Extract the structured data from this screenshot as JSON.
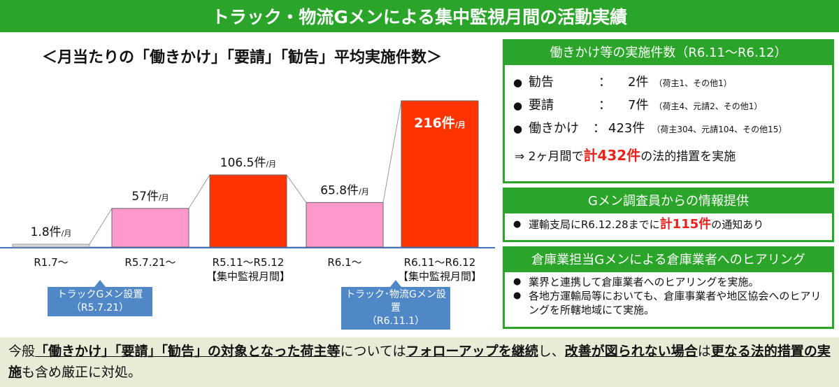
{
  "header": {
    "title": "トラック・物流Gメンによる集中監視月間の活動実績"
  },
  "chart_title": "＜月当たりの「働きかけ」「要請」「勧告」平均実施件数＞",
  "chart_data": {
    "type": "bar",
    "categories": [
      "R1.7～",
      "R5.7.21～",
      "R5.11～R5.12\n【集中監視月間】",
      "R6.1～",
      "R6.11～R6.12\n【集中監視月間】"
    ],
    "values": [
      1.8,
      57,
      106.5,
      65.8,
      216
    ],
    "value_labels": [
      "1.8件",
      "57件",
      "106.5件",
      "65.8件",
      "216件"
    ],
    "unit_suffix": "/月",
    "bar_colors": [
      "#d9d9d9",
      "#ff99cc",
      "#ff3300",
      "#ff99cc",
      "#ff3300"
    ],
    "ylim": [
      0,
      216
    ],
    "title": "",
    "xlabel": "",
    "ylabel": ""
  },
  "callouts": [
    {
      "line1": "トラックGメン設置",
      "line2": "（R5.7.21）"
    },
    {
      "line1": "トラック･物流Gメン設置",
      "line2": "（R6.11.1）"
    }
  ],
  "panel1": {
    "title": "働きかけ等の実施件数（R6.11～R6.12）",
    "rows": [
      {
        "label": "勧告",
        "colon": "：",
        "value": "2件",
        "note": "（荷主1、その他1）"
      },
      {
        "label": "要請",
        "colon": "：",
        "value": "7件",
        "note": "（荷主4、元請2、その他1）"
      },
      {
        "label": "働きかけ",
        "colon": "：",
        "value": "423件",
        "note": "（荷主304、元請104、その他15）"
      }
    ],
    "summary_prefix": "⇒ 2ヶ月間で",
    "summary_highlight": "計432件",
    "summary_suffix": "の法的措置を実施"
  },
  "panel2": {
    "title": "Gメン調査員からの情報提供",
    "text_prefix": "運輸支局にR6.12.28までに",
    "text_highlight": "計115件",
    "text_suffix": "の通知あり"
  },
  "panel3": {
    "title": "倉庫業担当Gメンによる倉庫業者へのヒアリング",
    "items": [
      "業界と連携して倉庫業者へのヒアリングを実施。",
      "各地方運輸局等においても、倉庫事業者や地区協会へのヒアリングを所轄地域にて実施。"
    ]
  },
  "footer": {
    "t1": "今般",
    "b1": "「働きかけ」「要請」「勧告」の対象となった荷主等",
    "t2": "については",
    "b2": "フォローアップを継続",
    "t3": "し、",
    "b3": "改善が図られない場合",
    "t4": "は",
    "b4": "更なる法的措置の実施",
    "t5": "も含め厳正に対処。"
  }
}
